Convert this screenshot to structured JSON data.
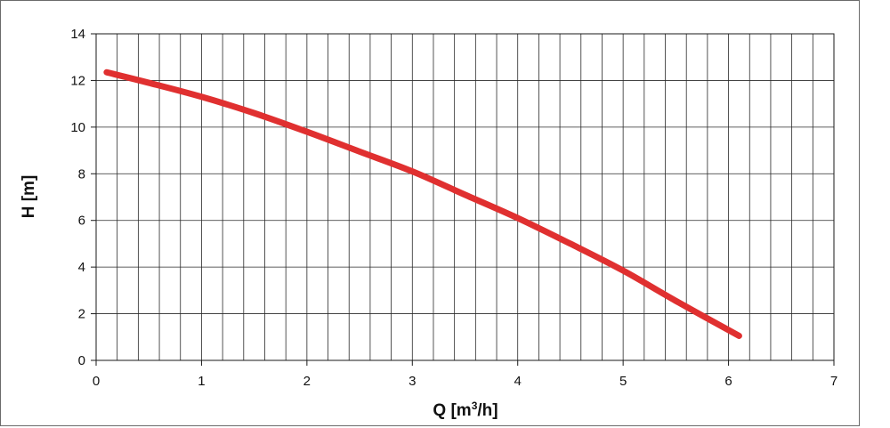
{
  "chart_data": {
    "type": "line",
    "title": "",
    "xlabel_parts": {
      "pre": "Q [m",
      "sup": "3",
      "post": "/h]"
    },
    "ylabel": "H [m]",
    "xlim": [
      0,
      7
    ],
    "ylim": [
      0,
      14
    ],
    "x_ticks": [
      "0",
      "1",
      "2",
      "3",
      "4",
      "5",
      "6",
      "7"
    ],
    "y_ticks": [
      "0",
      "2",
      "4",
      "6",
      "8",
      "10",
      "12",
      "14"
    ],
    "grid": {
      "x_step": 0.2,
      "y_step": 2
    },
    "series": [
      {
        "color": "#e03030",
        "x": [
          0.1,
          0.5,
          1.0,
          1.5,
          2.0,
          2.5,
          3.0,
          3.5,
          4.0,
          4.5,
          5.0,
          5.5,
          6.1
        ],
        "y": [
          12.35,
          11.9,
          11.3,
          10.6,
          9.8,
          8.95,
          8.1,
          7.1,
          6.1,
          5.0,
          3.85,
          2.55,
          1.05
        ]
      }
    ]
  }
}
